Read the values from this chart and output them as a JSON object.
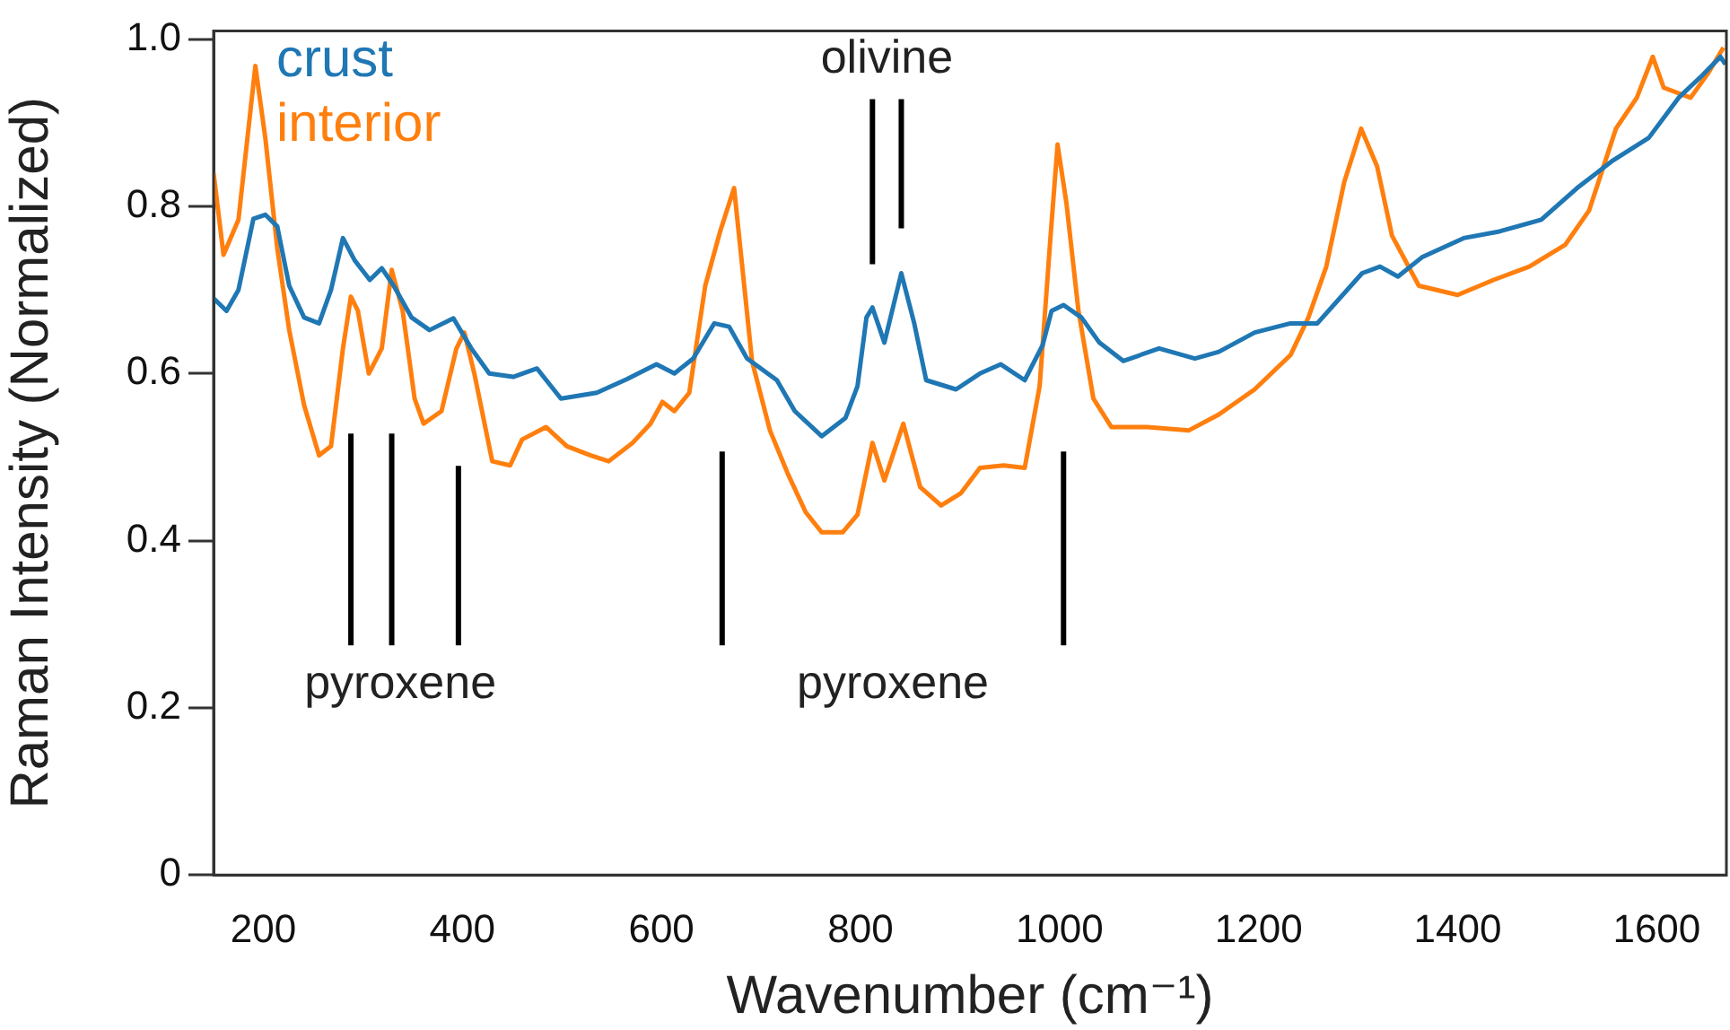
{
  "chart_data": {
    "type": "line",
    "xlabel": "Wavenumber (cm⁻¹)",
    "ylabel": "Raman Intensity (Normalized)",
    "xlim": [
      150,
      1670
    ],
    "ylim": [
      0,
      1.01
    ],
    "xticks": [
      200,
      400,
      600,
      800,
      1000,
      1200,
      1400,
      1600
    ],
    "yticks": [
      0,
      0.2,
      0.4,
      0.6,
      0.8,
      {
        "value": 1,
        "label": "1.0"
      }
    ],
    "grid": false,
    "legend": "top left",
    "marker": "none",
    "line_style": "solid",
    "series": [
      {
        "name": "crust",
        "color": "#1f77b4",
        "x": [
          150,
          163,
          175,
          190,
          202,
          214,
          226,
          241,
          256,
          268,
          280,
          292,
          307,
          319,
          331,
          349,
          367,
          391,
          409,
          427,
          451,
          475,
          499,
          535,
          565,
          595,
          613,
          632,
          653,
          668,
          686,
          716,
          734,
          761,
          785,
          797,
          806,
          812,
          824,
          841,
          854,
          866,
          896,
          920,
          941,
          965,
          983,
          992,
          1004,
          1022,
          1040,
          1064,
          1100,
          1136,
          1160,
          1196,
          1232,
          1259,
          1304,
          1322,
          1340,
          1364,
          1406,
          1442,
          1484,
          1520,
          1556,
          1592,
          1622,
          1646,
          1664,
          1669
        ],
        "values": [
          0.69,
          0.675,
          0.7,
          0.785,
          0.79,
          0.776,
          0.705,
          0.667,
          0.66,
          0.7,
          0.762,
          0.735,
          0.712,
          0.726,
          0.705,
          0.667,
          0.652,
          0.666,
          0.63,
          0.6,
          0.596,
          0.606,
          0.57,
          0.577,
          0.593,
          0.611,
          0.6,
          0.618,
          0.66,
          0.656,
          0.618,
          0.592,
          0.555,
          0.525,
          0.547,
          0.585,
          0.667,
          0.679,
          0.637,
          0.72,
          0.66,
          0.592,
          0.581,
          0.6,
          0.611,
          0.592,
          0.634,
          0.675,
          0.682,
          0.667,
          0.637,
          0.615,
          0.63,
          0.618,
          0.626,
          0.649,
          0.66,
          0.66,
          0.72,
          0.728,
          0.716,
          0.739,
          0.762,
          0.77,
          0.784,
          0.822,
          0.855,
          0.882,
          0.93,
          0.957,
          0.979,
          0.97
        ]
      },
      {
        "name": "interior",
        "color": "#ff7f0e",
        "x": [
          150,
          160,
          175,
          192,
          202,
          214,
          226,
          241,
          256,
          268,
          280,
          288,
          295,
          306,
          319,
          329,
          340,
          352,
          361,
          379,
          394,
          402,
          412,
          430,
          448,
          460,
          484,
          505,
          529,
          547,
          571,
          589,
          601,
          613,
          628,
          644,
          659,
          673,
          691,
          709,
          727,
          745,
          761,
          782,
          797,
          812,
          824,
          843,
          860,
          881,
          901,
          920,
          944,
          965,
          980,
          991,
          998,
          1007,
          1019,
          1034,
          1052,
          1088,
          1130,
          1160,
          1196,
          1232,
          1250,
          1268,
          1286,
          1303,
          1319,
          1334,
          1361,
          1400,
          1436,
          1472,
          1508,
          1532,
          1559,
          1580,
          1596,
          1607,
          1634,
          1652,
          1667
        ],
        "values": [
          0.84,
          0.742,
          0.784,
          0.968,
          0.882,
          0.75,
          0.652,
          0.562,
          0.502,
          0.513,
          0.63,
          0.692,
          0.675,
          0.6,
          0.63,
          0.724,
          0.675,
          0.57,
          0.54,
          0.555,
          0.63,
          0.649,
          0.6,
          0.495,
          0.49,
          0.521,
          0.536,
          0.513,
          0.502,
          0.495,
          0.517,
          0.54,
          0.566,
          0.555,
          0.577,
          0.705,
          0.77,
          0.822,
          0.615,
          0.532,
          0.48,
          0.434,
          0.41,
          0.41,
          0.431,
          0.517,
          0.472,
          0.54,
          0.464,
          0.442,
          0.457,
          0.487,
          0.49,
          0.487,
          0.585,
          0.765,
          0.874,
          0.803,
          0.675,
          0.57,
          0.536,
          0.536,
          0.532,
          0.551,
          0.581,
          0.622,
          0.667,
          0.728,
          0.829,
          0.893,
          0.848,
          0.765,
          0.705,
          0.694,
          0.712,
          0.728,
          0.754,
          0.795,
          0.893,
          0.93,
          0.979,
          0.942,
          0.93,
          0.96,
          0.99
        ]
      }
    ],
    "ref_lines": [
      {
        "axis": "x",
        "value": 288,
        "color": "#000000",
        "label": "pyroxene"
      },
      {
        "axis": "x",
        "value": 329,
        "color": "#000000"
      },
      {
        "axis": "x",
        "value": 396,
        "color": "#000000"
      },
      {
        "axis": "x",
        "value": 661,
        "color": "#000000",
        "label": "pyroxene"
      },
      {
        "axis": "x",
        "value": 1004,
        "color": "#000000"
      },
      {
        "axis": "x",
        "value": 812,
        "color": "#000000",
        "label": "olivine"
      },
      {
        "axis": "x",
        "value": 841,
        "color": "#000000"
      }
    ]
  }
}
